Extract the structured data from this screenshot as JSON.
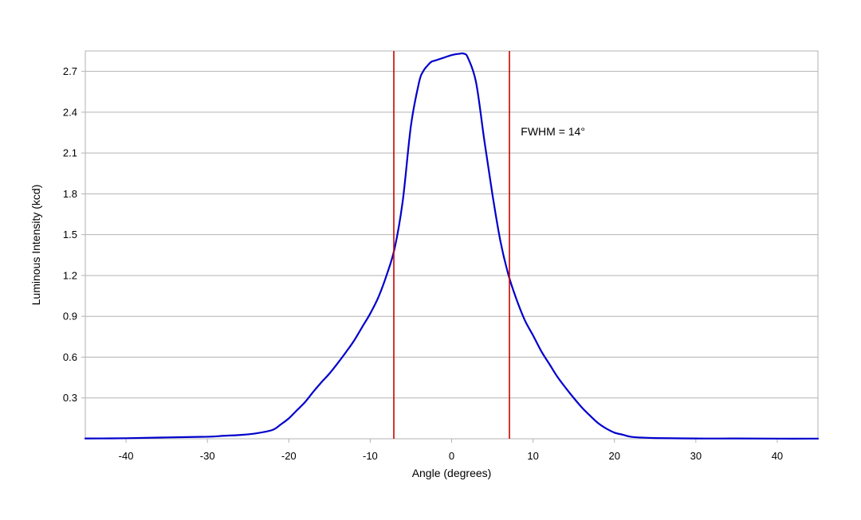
{
  "chart_data": {
    "type": "line",
    "title": "",
    "xlabel": "Angle (degrees)",
    "ylabel": "Luminous Intensity (kcd)",
    "xlim": [
      -45,
      45
    ],
    "ylim": [
      0,
      2.85
    ],
    "xticks": [
      -40,
      -30,
      -20,
      -10,
      0,
      10,
      20,
      30,
      40
    ],
    "yticks": [
      0.3,
      0.6,
      0.9,
      1.2,
      1.5,
      1.8,
      2.1,
      2.4,
      2.7
    ],
    "grid": "horizontal",
    "legend": "none",
    "series": [
      {
        "color": "#0000cc",
        "x": [
          -45,
          -40,
          -35,
          -30,
          -28,
          -26,
          -24,
          -22,
          -21,
          -20,
          -19,
          -18,
          -17,
          -16,
          -15,
          -14,
          -13,
          -12,
          -11,
          -10,
          -9,
          -8,
          -7,
          -6,
          -5,
          -4,
          -3.5,
          -3,
          -2.5,
          -2,
          -1,
          0,
          1,
          1.5,
          2,
          3,
          4,
          5,
          6,
          7,
          8,
          9,
          10,
          11,
          12,
          13,
          14,
          15,
          16,
          17,
          18,
          19,
          20,
          21,
          22,
          23,
          25,
          30,
          35,
          40,
          45
        ],
        "y": [
          0.002,
          0.004,
          0.01,
          0.015,
          0.022,
          0.028,
          0.04,
          0.065,
          0.105,
          0.15,
          0.21,
          0.27,
          0.345,
          0.415,
          0.48,
          0.555,
          0.635,
          0.72,
          0.82,
          0.92,
          1.04,
          1.2,
          1.4,
          1.75,
          2.3,
          2.62,
          2.7,
          2.74,
          2.77,
          2.78,
          2.8,
          2.82,
          2.83,
          2.83,
          2.8,
          2.62,
          2.2,
          1.8,
          1.45,
          1.2,
          1.02,
          0.87,
          0.76,
          0.645,
          0.55,
          0.455,
          0.375,
          0.3,
          0.23,
          0.17,
          0.115,
          0.075,
          0.045,
          0.03,
          0.015,
          0.01,
          0.005,
          0.002,
          0.002,
          0.001,
          0.001
        ]
      }
    ],
    "vertical_lines": {
      "color": "#cc0000",
      "x": [
        -7.1,
        7.1
      ]
    },
    "annotations": [
      {
        "text": "FWHM = 14°",
        "x": 8.5,
        "y": 2.26
      }
    ]
  }
}
